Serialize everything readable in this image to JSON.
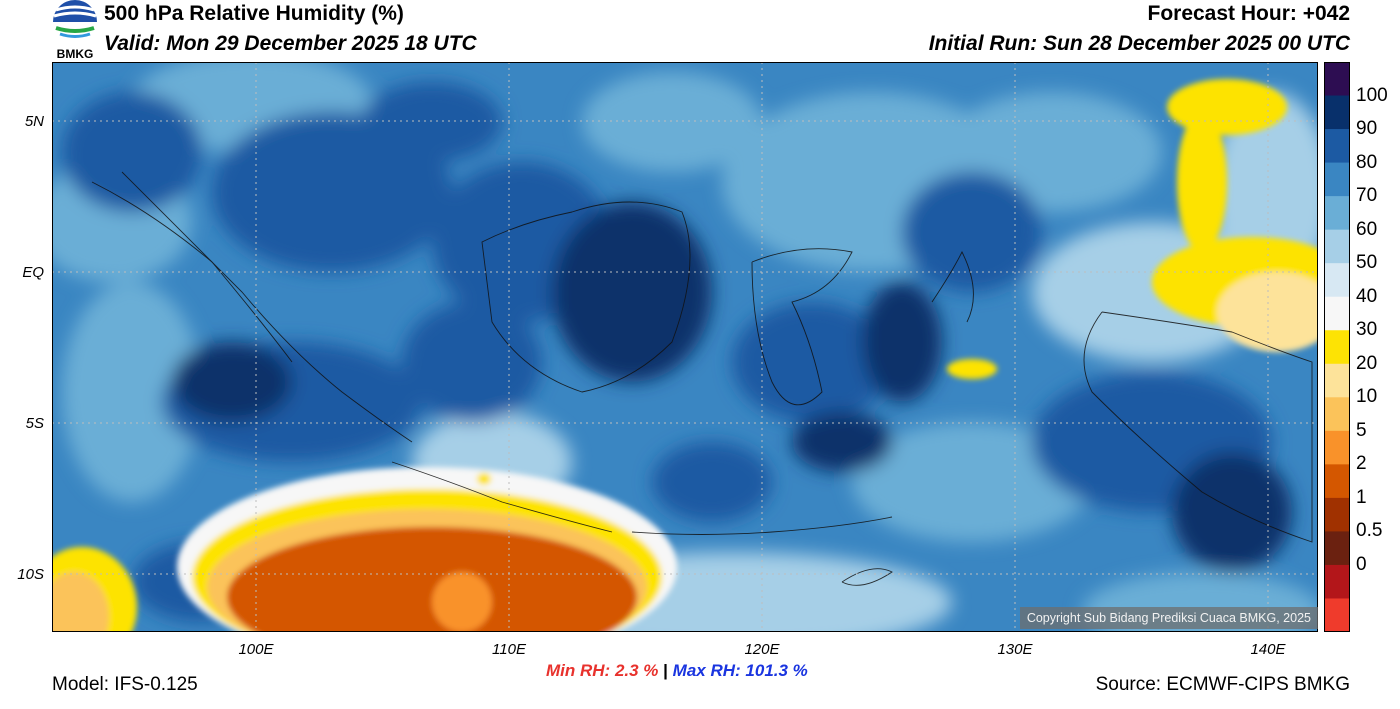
{
  "header": {
    "title": "500 hPa Relative Humidity (%)",
    "valid": "Valid: Mon 29 December 2025 18 UTC",
    "forecast_hour": "Forecast Hour: +042",
    "initial_run": "Initial Run: Sun 28 December 2025 00 UTC",
    "logo_text": "BMKG"
  },
  "axes": {
    "lat_labels": [
      "5N",
      "EQ",
      "5S",
      "10S"
    ],
    "lon_labels": [
      "100E",
      "110E",
      "120E",
      "130E",
      "140E"
    ]
  },
  "colorbar": {
    "labels": [
      "100",
      "90",
      "80",
      "70",
      "60",
      "50",
      "40",
      "30",
      "20",
      "10",
      "5",
      "2",
      "1",
      "0.5",
      "0"
    ],
    "colors": [
      "#2d0d52",
      "#08306b",
      "#1c5aa3",
      "#3a86c2",
      "#6aaed6",
      "#a6cfe7",
      "#d7e8f3",
      "#f7f7f7",
      "#fde304",
      "#fde39a",
      "#fbc35a",
      "#f9922a",
      "#d45700",
      "#a03100",
      "#6b2110",
      "#b3161a",
      "#ef3b2c"
    ]
  },
  "stats": {
    "min_label": "Min RH:",
    "min_value": "2.3 %",
    "separator": "|",
    "max_label": "Max RH:",
    "max_value": "101.3 %",
    "min_color": "#e8322d",
    "max_color": "#1a35e0"
  },
  "footer": {
    "model": "Model: IFS-0.125",
    "source": "Source: ECMWF-CIPS BMKG",
    "copyright": "Copyright Sub Bidang Prediksi Cuaca BMKG, 2025"
  }
}
